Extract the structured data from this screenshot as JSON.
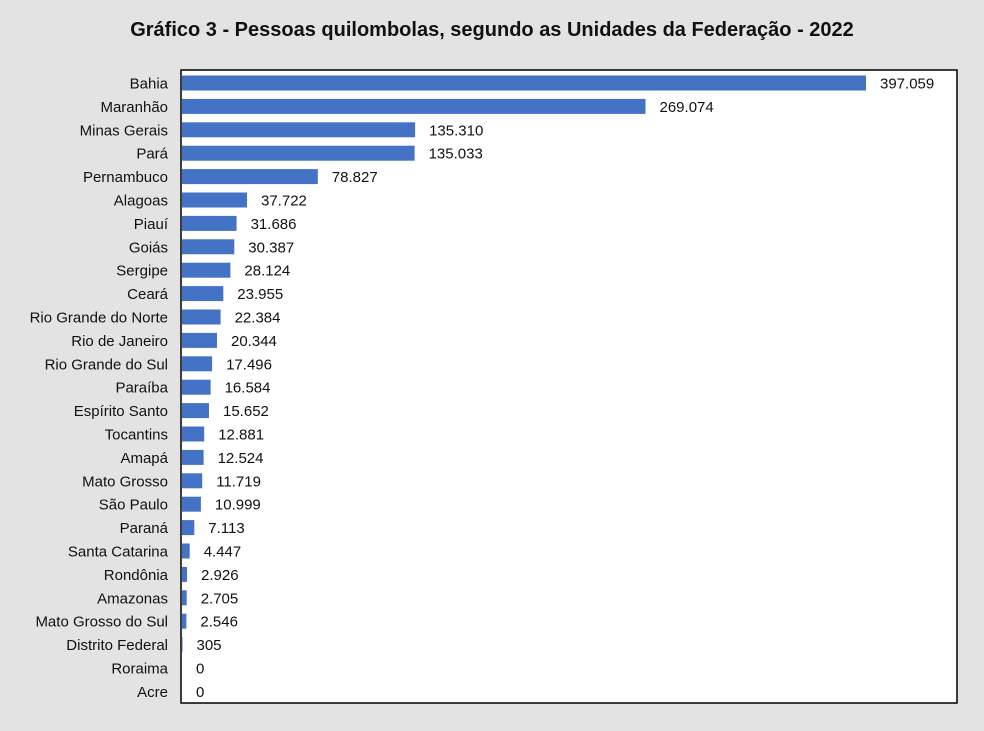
{
  "chart_data": {
    "type": "bar",
    "orientation": "horizontal",
    "title": "Gráfico 3 - Pessoas quilombolas, segundo as Unidades da Federação - 2022",
    "xlabel": "",
    "ylabel": "",
    "grid": false,
    "legend": "none",
    "bar_color": "#4472c4",
    "background_color": "#e3e3e3",
    "plot_background": "#ffffff",
    "xlim": [
      0,
      430000
    ],
    "categories": [
      "Bahia",
      "Maranhão",
      "Minas Gerais",
      "Pará",
      "Pernambuco",
      "Alagoas",
      "Piauí",
      "Goiás",
      "Sergipe",
      "Ceará",
      "Rio Grande do Norte",
      "Rio de Janeiro",
      "Rio Grande do Sul",
      "Paraíba",
      "Espírito Santo",
      "Tocantins",
      "Amapá",
      "Mato Grosso",
      "São Paulo",
      "Paraná",
      "Santa Catarina",
      "Rondônia",
      "Amazonas",
      "Mato Grosso do Sul",
      "Distrito Federal",
      "Roraima",
      "Acre"
    ],
    "values": [
      397059,
      269074,
      135310,
      135033,
      78827,
      37722,
      31686,
      30387,
      28124,
      23955,
      22384,
      20344,
      17496,
      16584,
      15652,
      12881,
      12524,
      11719,
      10999,
      7113,
      4447,
      2926,
      2705,
      2546,
      305,
      0,
      0
    ],
    "data_labels": [
      "397.059",
      "269.074",
      "135.310",
      "135.033",
      "78.827",
      "37.722",
      "31.686",
      "30.387",
      "28.124",
      "23.955",
      "22.384",
      "20.344",
      "17.496",
      "16.584",
      "15.652",
      "12.881",
      "12.524",
      "11.719",
      "10.999",
      "7.113",
      "4.447",
      "2.926",
      "2.705",
      "2.546",
      "305",
      "0",
      "0"
    ]
  }
}
